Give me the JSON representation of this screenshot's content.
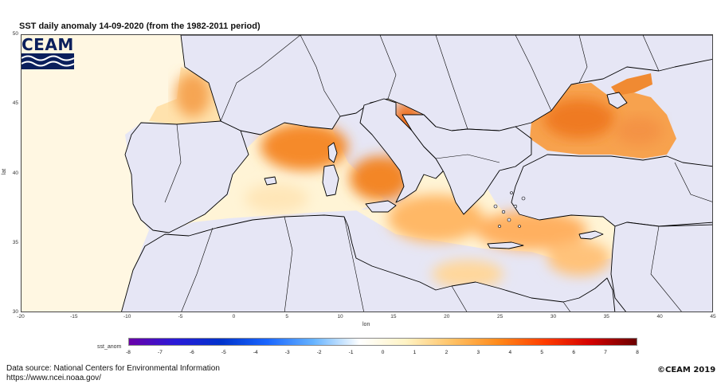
{
  "title": "SST daily anomaly 14-09-2020 (from the 1982-2011 period)",
  "logo": {
    "text": "CEAM",
    "primary_color": "#0b1f5c"
  },
  "axes": {
    "xlabel": "lon",
    "ylabel": "lat",
    "x_ticks": [
      "-20",
      "-15",
      "-10",
      "-5",
      "0",
      "5",
      "10",
      "15",
      "20",
      "25",
      "30",
      "35",
      "40",
      "45"
    ],
    "y_ticks": [
      "50",
      "45",
      "40",
      "35",
      "30"
    ],
    "lon_range": [
      -20,
      45
    ],
    "lat_range": [
      30,
      50
    ]
  },
  "colorbar": {
    "label": "sst_anom",
    "ticks": [
      "-8",
      "-7",
      "-6",
      "-5",
      "-4",
      "-3",
      "-2",
      "-1",
      "0",
      "1",
      "2",
      "3",
      "4",
      "5",
      "6",
      "7",
      "8"
    ],
    "range": [
      -8,
      8
    ],
    "colors": [
      "#6a00a8",
      "#2a1ad8",
      "#0033cc",
      "#1a66ff",
      "#66b3ff",
      "#ffffff",
      "#fff3c4",
      "#ffc266",
      "#ff8a1a",
      "#ff3d00",
      "#d40000",
      "#6b0000"
    ]
  },
  "colors": {
    "land": "#e6e6f5",
    "sea_low": "#fff6e0",
    "sea_mid": "#ffbd6b",
    "sea_high": "#f07a1a",
    "coast": "#000000"
  },
  "footer": {
    "source_line1": "Data source: National Centers for Environmental Information",
    "source_line2": "https://www.ncei.noaa.gov/",
    "copyright": "©CEAM 2019"
  }
}
